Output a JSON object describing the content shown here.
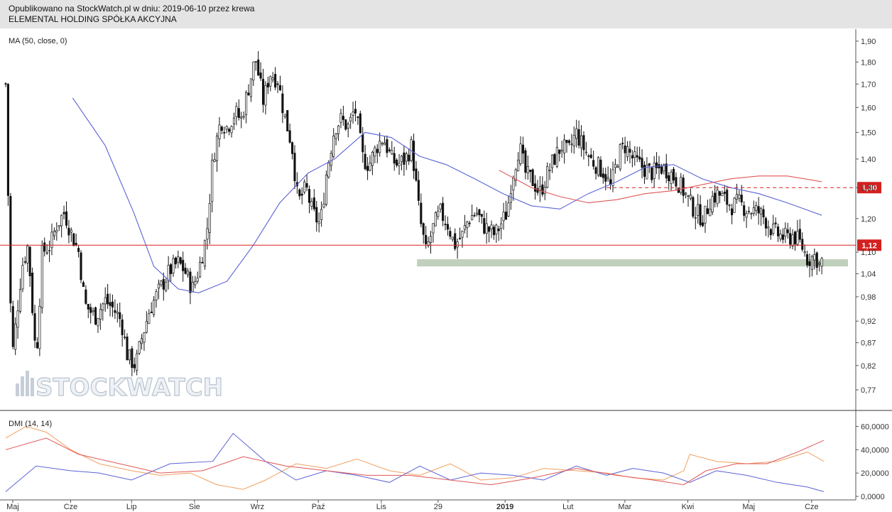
{
  "header": {
    "published": "Opublikowano na StockWatch.pl w dniu: 2019-06-10 przez krewa",
    "company": "ELEMENTAL HOLDING SPÓŁKA AKCYJNA"
  },
  "watermark": "STOCKWATCH",
  "colors": {
    "ma50": "#5b63d6",
    "ma_long": "#e05656",
    "resistance": "#d42020",
    "support_zone": "#9fb79a",
    "dmi_plus": "#f0a060",
    "dmi_minus": "#5b63d6",
    "adx": "#e05656",
    "candle_up": "#ffffff",
    "candle_down": "#111111"
  },
  "chart_data": [
    {
      "type": "candlestick",
      "indicator_label": "MA (50, close, 0)",
      "y_scale": "log",
      "ylim": [
        0.73,
        1.96
      ],
      "y_ticks": [
        "1,90",
        "1,80",
        "1,70",
        "1,60",
        "1,50",
        "1,40",
        "1,30",
        "1,20",
        "1,10",
        "1,04",
        "0,98",
        "0,92",
        "0,87",
        "0,82",
        "0,77"
      ],
      "x_ticks": [
        "Maj",
        "Cze",
        "Lip",
        "Sie",
        "Wrz",
        "Paź",
        "Lis",
        "29",
        "2019",
        "Lut",
        "Mar",
        "Kwi",
        "Maj",
        "Cze"
      ],
      "price_tags": [
        {
          "label": "1,30",
          "value": 1.3,
          "style": "dashed"
        },
        {
          "label": "1,12",
          "value": 1.12,
          "style": "solid"
        }
      ],
      "support_zone": {
        "from": 1.06,
        "to": 1.08
      },
      "close_path": [
        [
          "2018-04-30",
          1.7
        ],
        [
          "2018-05-03",
          0.83
        ],
        [
          "2018-05-08",
          1.06
        ],
        [
          "2018-05-11",
          1.12
        ],
        [
          "2018-05-15",
          0.83
        ],
        [
          "2018-05-18",
          1.1
        ],
        [
          "2018-05-22",
          1.12
        ],
        [
          "2018-05-25",
          1.18
        ],
        [
          "2018-05-29",
          1.22
        ],
        [
          "2018-06-01",
          1.16
        ],
        [
          "2018-06-05",
          1.1
        ],
        [
          "2018-06-08",
          0.96
        ],
        [
          "2018-06-13",
          0.93
        ],
        [
          "2018-06-18",
          0.97
        ],
        [
          "2018-06-22",
          0.95
        ],
        [
          "2018-06-26",
          0.92
        ],
        [
          "2018-06-29",
          0.84
        ],
        [
          "2018-07-03",
          0.82
        ],
        [
          "2018-07-06",
          0.88
        ],
        [
          "2018-07-10",
          0.95
        ],
        [
          "2018-07-13",
          0.98
        ],
        [
          "2018-07-17",
          1.02
        ],
        [
          "2018-07-20",
          1.05
        ],
        [
          "2018-07-24",
          1.07
        ],
        [
          "2018-07-27",
          1.05
        ],
        [
          "2018-07-31",
          1.0
        ],
        [
          "2018-08-03",
          1.05
        ],
        [
          "2018-08-07",
          1.15
        ],
        [
          "2018-08-10",
          1.4
        ],
        [
          "2018-08-14",
          1.55
        ],
        [
          "2018-08-17",
          1.52
        ],
        [
          "2018-08-21",
          1.58
        ],
        [
          "2018-08-24",
          1.55
        ],
        [
          "2018-08-28",
          1.7
        ],
        [
          "2018-08-31",
          1.82
        ],
        [
          "2018-09-04",
          1.62
        ],
        [
          "2018-09-07",
          1.75
        ],
        [
          "2018-09-11",
          1.72
        ],
        [
          "2018-09-14",
          1.58
        ],
        [
          "2018-09-18",
          1.45
        ],
        [
          "2018-09-21",
          1.25
        ],
        [
          "2018-09-25",
          1.3
        ],
        [
          "2018-09-28",
          1.22
        ],
        [
          "2018-10-02",
          1.18
        ],
        [
          "2018-10-05",
          1.35
        ],
        [
          "2018-10-09",
          1.52
        ],
        [
          "2018-10-12",
          1.55
        ],
        [
          "2018-10-16",
          1.52
        ],
        [
          "2018-10-19",
          1.6
        ],
        [
          "2018-10-23",
          1.4
        ],
        [
          "2018-10-26",
          1.38
        ],
        [
          "2018-10-30",
          1.45
        ],
        [
          "2018-11-02",
          1.48
        ],
        [
          "2018-11-06",
          1.4
        ],
        [
          "2018-11-09",
          1.38
        ],
        [
          "2018-11-13",
          1.4
        ],
        [
          "2018-11-16",
          1.45
        ],
        [
          "2018-11-20",
          1.2
        ],
        [
          "2018-11-23",
          1.1
        ],
        [
          "2018-11-27",
          1.18
        ],
        [
          "2018-11-30",
          1.22
        ],
        [
          "2018-12-04",
          1.18
        ],
        [
          "2018-12-07",
          1.12
        ],
        [
          "2018-12-11",
          1.15
        ],
        [
          "2018-12-14",
          1.2
        ],
        [
          "2018-12-18",
          1.22
        ],
        [
          "2018-12-21",
          1.18
        ],
        [
          "2018-12-27",
          1.15
        ],
        [
          "2019-01-02",
          1.22
        ],
        [
          "2019-01-04",
          1.32
        ],
        [
          "2019-01-08",
          1.45
        ],
        [
          "2019-01-11",
          1.35
        ],
        [
          "2019-01-15",
          1.32
        ],
        [
          "2019-01-18",
          1.28
        ],
        [
          "2019-01-22",
          1.35
        ],
        [
          "2019-01-25",
          1.4
        ],
        [
          "2019-01-29",
          1.45
        ],
        [
          "2019-02-01",
          1.42
        ],
        [
          "2019-02-05",
          1.5
        ],
        [
          "2019-02-08",
          1.45
        ],
        [
          "2019-02-12",
          1.4
        ],
        [
          "2019-02-15",
          1.38
        ],
        [
          "2019-02-19",
          1.35
        ],
        [
          "2019-02-22",
          1.3
        ],
        [
          "2019-02-26",
          1.42
        ],
        [
          "2019-03-01",
          1.45
        ],
        [
          "2019-03-05",
          1.4
        ],
        [
          "2019-03-08",
          1.38
        ],
        [
          "2019-03-12",
          1.36
        ],
        [
          "2019-03-15",
          1.35
        ],
        [
          "2019-03-19",
          1.37
        ],
        [
          "2019-03-22",
          1.36
        ],
        [
          "2019-03-26",
          1.33
        ],
        [
          "2019-03-29",
          1.3
        ],
        [
          "2019-04-02",
          1.25
        ],
        [
          "2019-04-05",
          1.22
        ],
        [
          "2019-04-09",
          1.2
        ],
        [
          "2019-04-12",
          1.26
        ],
        [
          "2019-04-16",
          1.28
        ],
        [
          "2019-04-19",
          1.26
        ],
        [
          "2019-04-23",
          1.24
        ],
        [
          "2019-04-26",
          1.25
        ],
        [
          "2019-04-30",
          1.23
        ],
        [
          "2019-05-06",
          1.22
        ],
        [
          "2019-05-09",
          1.2
        ],
        [
          "2019-05-13",
          1.16
        ],
        [
          "2019-05-16",
          1.15
        ],
        [
          "2019-05-20",
          1.14
        ],
        [
          "2019-05-23",
          1.15
        ],
        [
          "2019-05-27",
          1.12
        ],
        [
          "2019-05-30",
          1.08
        ],
        [
          "2019-06-03",
          1.09
        ],
        [
          "2019-06-05",
          1.06
        ],
        [
          "2019-06-07",
          1.09
        ]
      ],
      "series": [
        {
          "name": "MA (50, close, 0)",
          "points": [
            [
              "2018-06-02",
              1.64
            ],
            [
              "2018-06-18",
              1.45
            ],
            [
              "2018-07-02",
              1.22
            ],
            [
              "2018-07-12",
              1.06
            ],
            [
              "2018-07-24",
              1.0
            ],
            [
              "2018-08-03",
              0.99
            ],
            [
              "2018-08-17",
              1.02
            ],
            [
              "2018-08-30",
              1.12
            ],
            [
              "2018-09-12",
              1.25
            ],
            [
              "2018-09-26",
              1.35
            ],
            [
              "2018-10-09",
              1.4
            ],
            [
              "2018-10-24",
              1.5
            ],
            [
              "2018-11-06",
              1.48
            ],
            [
              "2018-11-20",
              1.41
            ],
            [
              "2018-12-03",
              1.38
            ],
            [
              "2018-12-17",
              1.33
            ],
            [
              "2018-12-31",
              1.28
            ],
            [
              "2019-01-14",
              1.24
            ],
            [
              "2019-01-28",
              1.23
            ],
            [
              "2019-02-11",
              1.28
            ],
            [
              "2019-02-25",
              1.32
            ],
            [
              "2019-03-11",
              1.37
            ],
            [
              "2019-03-25",
              1.38
            ],
            [
              "2019-04-08",
              1.33
            ],
            [
              "2019-04-22",
              1.3
            ],
            [
              "2019-05-06",
              1.28
            ],
            [
              "2019-05-20",
              1.25
            ],
            [
              "2019-06-06",
              1.21
            ]
          ]
        },
        {
          "name": "MA long",
          "points": [
            [
              "2018-12-29",
              1.36
            ],
            [
              "2019-01-14",
              1.3
            ],
            [
              "2019-01-28",
              1.27
            ],
            [
              "2019-02-11",
              1.25
            ],
            [
              "2019-02-25",
              1.26
            ],
            [
              "2019-03-11",
              1.28
            ],
            [
              "2019-03-25",
              1.29
            ],
            [
              "2019-04-08",
              1.31
            ],
            [
              "2019-04-22",
              1.33
            ],
            [
              "2019-05-06",
              1.34
            ],
            [
              "2019-05-20",
              1.34
            ],
            [
              "2019-06-06",
              1.32
            ]
          ]
        }
      ]
    },
    {
      "type": "line",
      "indicator_label": "DMI (14, 14)",
      "ylim": [
        0,
        70
      ],
      "y_ticks": [
        "60,0000",
        "40,0000",
        "20,0000",
        "0,0000"
      ],
      "series": [
        {
          "name": "+DI",
          "points": [
            [
              "2018-04-30",
              50
            ],
            [
              "2018-05-10",
              60
            ],
            [
              "2018-05-20",
              55
            ],
            [
              "2018-06-01",
              40
            ],
            [
              "2018-06-15",
              28
            ],
            [
              "2018-07-01",
              22
            ],
            [
              "2018-07-15",
              18
            ],
            [
              "2018-07-30",
              20
            ],
            [
              "2018-08-12",
              10
            ],
            [
              "2018-08-25",
              6
            ],
            [
              "2018-09-05",
              14
            ],
            [
              "2018-09-20",
              28
            ],
            [
              "2018-10-05",
              24
            ],
            [
              "2018-10-20",
              32
            ],
            [
              "2018-11-05",
              22
            ],
            [
              "2018-11-20",
              18
            ],
            [
              "2018-12-05",
              28
            ],
            [
              "2018-12-20",
              14
            ],
            [
              "2019-01-05",
              16
            ],
            [
              "2019-01-20",
              24
            ],
            [
              "2019-02-05",
              22
            ],
            [
              "2019-02-20",
              20
            ],
            [
              "2019-03-05",
              16
            ],
            [
              "2019-03-20",
              14
            ],
            [
              "2019-03-30",
              22
            ],
            [
              "2019-04-02",
              36
            ],
            [
              "2019-04-15",
              30
            ],
            [
              "2019-04-30",
              28
            ],
            [
              "2019-05-15",
              30
            ],
            [
              "2019-05-30",
              38
            ],
            [
              "2019-06-07",
              30
            ]
          ]
        },
        {
          "name": "-DI",
          "points": [
            [
              "2018-04-30",
              4
            ],
            [
              "2018-05-15",
              26
            ],
            [
              "2018-06-01",
              22
            ],
            [
              "2018-06-15",
              20
            ],
            [
              "2018-07-01",
              14
            ],
            [
              "2018-07-20",
              28
            ],
            [
              "2018-08-10",
              30
            ],
            [
              "2018-08-20",
              54
            ],
            [
              "2018-09-05",
              30
            ],
            [
              "2018-09-20",
              14
            ],
            [
              "2018-10-05",
              22
            ],
            [
              "2018-10-20",
              18
            ],
            [
              "2018-11-05",
              12
            ],
            [
              "2018-11-20",
              26
            ],
            [
              "2018-12-05",
              14
            ],
            [
              "2018-12-20",
              20
            ],
            [
              "2019-01-05",
              18
            ],
            [
              "2019-01-20",
              14
            ],
            [
              "2019-02-05",
              26
            ],
            [
              "2019-02-20",
              18
            ],
            [
              "2019-03-05",
              24
            ],
            [
              "2019-03-20",
              20
            ],
            [
              "2019-04-02",
              12
            ],
            [
              "2019-04-15",
              22
            ],
            [
              "2019-04-30",
              18
            ],
            [
              "2019-05-15",
              12
            ],
            [
              "2019-05-30",
              8
            ],
            [
              "2019-06-07",
              4
            ]
          ]
        },
        {
          "name": "ADX",
          "points": [
            [
              "2018-04-30",
              40
            ],
            [
              "2018-05-20",
              50
            ],
            [
              "2018-06-05",
              36
            ],
            [
              "2018-06-25",
              28
            ],
            [
              "2018-07-15",
              20
            ],
            [
              "2018-08-05",
              22
            ],
            [
              "2018-08-25",
              34
            ],
            [
              "2018-09-15",
              26
            ],
            [
              "2018-10-05",
              22
            ],
            [
              "2018-10-25",
              18
            ],
            [
              "2018-11-15",
              18
            ],
            [
              "2018-12-05",
              14
            ],
            [
              "2018-12-25",
              10
            ],
            [
              "2019-01-15",
              16
            ],
            [
              "2019-02-05",
              24
            ],
            [
              "2019-02-25",
              18
            ],
            [
              "2019-03-15",
              14
            ],
            [
              "2019-03-30",
              10
            ],
            [
              "2019-04-10",
              22
            ],
            [
              "2019-04-25",
              28
            ],
            [
              "2019-05-10",
              28
            ],
            [
              "2019-05-25",
              38
            ],
            [
              "2019-06-07",
              48
            ]
          ]
        }
      ]
    }
  ]
}
